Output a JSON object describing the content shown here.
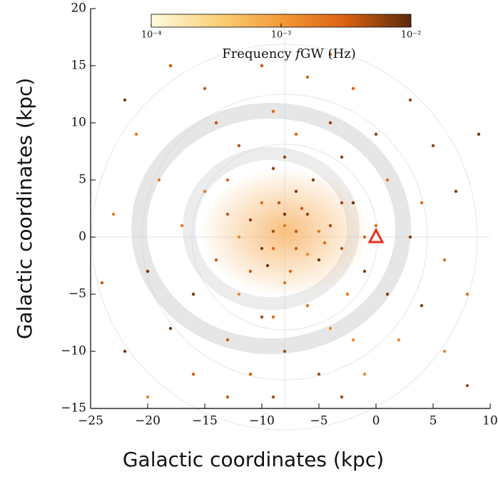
{
  "chart_data": {
    "type": "scatter",
    "xlabel": "Galactic coordinates (kpc)",
    "ylabel": "Galactic coordinates (kpc)",
    "xlim": [
      -25,
      10
    ],
    "ylim": [
      -15,
      20
    ],
    "xticks": [
      {
        "value": -25,
        "label": "−25"
      },
      {
        "value": -20,
        "label": "−20"
      },
      {
        "value": -15,
        "label": "−15"
      },
      {
        "value": -10,
        "label": "−10"
      },
      {
        "value": -5,
        "label": "−5"
      },
      0,
      5,
      10
    ],
    "yticks": [
      {
        "value": -15,
        "label": "−15"
      },
      {
        "value": -10,
        "label": "−10"
      },
      {
        "value": -5,
        "label": "−5"
      },
      0,
      5,
      10,
      15,
      20
    ],
    "colorbar": {
      "label": "Frequency 𝑓GW (Hz)",
      "clim": [
        0.0001,
        0.01
      ],
      "log": true,
      "colormap": [
        "#fffbe0",
        "#fbd17a",
        "#f39a38",
        "#d9600f",
        "#5c2a0e"
      ],
      "ticks": [
        {
          "value": 0.0001,
          "label": "10⁻⁴"
        },
        {
          "value": 0.001,
          "label": "10⁻³"
        },
        {
          "value": 0.01,
          "label": "10⁻²"
        }
      ]
    },
    "marker": {
      "x": 0,
      "y": 0,
      "color": "#e8321e"
    },
    "x": [
      -8,
      -7,
      -9,
      -6,
      -10,
      -5,
      -11,
      -4,
      -12,
      -7,
      -8,
      -3,
      -13,
      -9,
      -6,
      -2,
      -14,
      -10,
      -4,
      -1,
      -15,
      -12,
      -7,
      -3,
      0,
      -16,
      -13,
      -8,
      -2,
      1,
      -17,
      -14,
      -9,
      -4,
      1,
      -18,
      -11,
      -5,
      2,
      3,
      -19,
      -15,
      -6,
      0,
      4,
      -20,
      -16,
      -9,
      -1,
      4,
      -21,
      -10,
      -2,
      5,
      6,
      -22,
      -13,
      -3,
      6,
      7,
      -23,
      -18,
      -4,
      3,
      8,
      -8,
      -7,
      -9,
      -6,
      -10,
      -5,
      -8.5,
      -7.5,
      -11,
      -4.5,
      -9.5,
      -6.5,
      -3,
      -12,
      -5.5,
      -2.5,
      -13,
      -1,
      -8,
      -9,
      9,
      -24,
      8,
      -20,
      -22
    ],
    "y": [
      1,
      0.5,
      -1,
      2,
      3,
      -2,
      -3,
      1,
      0,
      4,
      -4,
      -1,
      5,
      6,
      -6,
      3,
      -2,
      -7,
      -8,
      -3,
      4,
      8,
      9,
      7,
      1,
      -5,
      -9,
      -10,
      -9,
      -5,
      1,
      10,
      11,
      10,
      5,
      -8,
      -12,
      -12,
      -9,
      0,
      5,
      13,
      14,
      9,
      3,
      -3,
      -12,
      -14,
      -12,
      -6,
      9,
      15,
      13,
      8,
      -2,
      -10,
      -14,
      -14,
      -10,
      4,
      2,
      15,
      16,
      12,
      -5,
      2,
      -1,
      0.5,
      -1.5,
      -1,
      0.5,
      3,
      -3,
      1.5,
      -0.5,
      -2.5,
      2.5,
      3,
      -5,
      5,
      -5,
      2,
      0,
      7,
      -7,
      9,
      -4,
      -13,
      -14,
      12
    ],
    "c": [
      0.002,
      0.004,
      0.003,
      0.006,
      0.0025,
      0.008,
      0.0035,
      0.005,
      0.0015,
      0.007,
      0.002,
      0.004,
      0.003,
      0.006,
      0.0025,
      0.008,
      0.0035,
      0.005,
      0.0015,
      0.007,
      0.002,
      0.004,
      0.003,
      0.006,
      0.0025,
      0.008,
      0.0035,
      0.005,
      0.0015,
      0.007,
      0.002,
      0.004,
      0.003,
      0.006,
      0.0025,
      0.008,
      0.0035,
      0.005,
      0.0015,
      0.007,
      0.002,
      0.004,
      0.003,
      0.006,
      0.0025,
      0.008,
      0.0035,
      0.005,
      0.0015,
      0.007,
      0.002,
      0.004,
      0.003,
      0.006,
      0.0025,
      0.008,
      0.0035,
      0.005,
      0.0015,
      0.007,
      0.002,
      0.004,
      0.003,
      0.006,
      0.0025,
      0.008,
      0.0035,
      0.005,
      0.0015,
      0.007,
      0.002,
      0.004,
      0.003,
      0.006,
      0.0025,
      0.008,
      0.0035,
      0.005,
      0.0015,
      0.007,
      0.002,
      0.004,
      0.003,
      0.006,
      0.0025,
      0.008,
      0.0035,
      0.005,
      0.0015,
      0.007
    ]
  }
}
